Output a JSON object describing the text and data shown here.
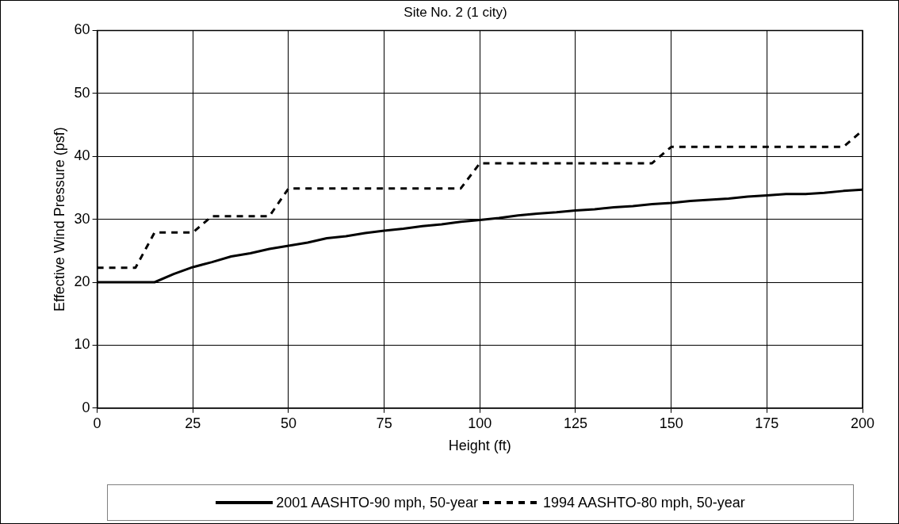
{
  "chart_data": {
    "type": "line",
    "title": "Site No. 2 (1 city)",
    "xlabel": "Height (ft)",
    "ylabel": "Effective Wind Pressure (psf)",
    "x": [
      0,
      5,
      10,
      15,
      20,
      25,
      30,
      35,
      40,
      45,
      50,
      55,
      60,
      65,
      70,
      75,
      80,
      85,
      90,
      95,
      100,
      105,
      110,
      115,
      120,
      125,
      130,
      135,
      140,
      145,
      150,
      155,
      160,
      165,
      170,
      175,
      180,
      185,
      190,
      195,
      200
    ],
    "series": [
      {
        "name": "2001 AASHTO-90 mph, 50-year",
        "color": "#000000",
        "line_style": "solid",
        "values": [
          20,
          20,
          20,
          20,
          21.3,
          22.4,
          23.2,
          24.1,
          24.6,
          25.3,
          25.8,
          26.3,
          27,
          27.3,
          27.8,
          28.2,
          28.5,
          28.9,
          29.2,
          29.6,
          29.9,
          30.2,
          30.6,
          30.9,
          31.1,
          31.4,
          31.6,
          31.9,
          32.1,
          32.4,
          32.6,
          32.9,
          33.1,
          33.3,
          33.6,
          33.8,
          34,
          34,
          34.2,
          34.5,
          34.7
        ]
      },
      {
        "name": "1994 AASHTO-80 mph, 50-year",
        "color": "#000000",
        "line_style": "dashed",
        "values": [
          22.3,
          22.3,
          22.3,
          27.9,
          27.9,
          27.9,
          30.5,
          30.5,
          30.5,
          30.5,
          34.9,
          34.9,
          34.9,
          34.9,
          34.9,
          34.9,
          34.9,
          34.9,
          34.9,
          34.9,
          38.9,
          38.9,
          38.9,
          38.9,
          38.9,
          38.9,
          38.9,
          38.9,
          38.9,
          38.9,
          41.5,
          41.5,
          41.5,
          41.5,
          41.5,
          41.5,
          41.5,
          41.5,
          41.5,
          41.5,
          44.1
        ]
      }
    ],
    "xlim": [
      0,
      200
    ],
    "xticks": [
      0,
      25,
      50,
      75,
      100,
      125,
      150,
      175,
      200
    ],
    "ylim": [
      0,
      60
    ],
    "yticks": [
      0,
      10,
      20,
      30,
      40,
      50,
      60
    ],
    "grid": true,
    "legend": "bottom",
    "marker": "none"
  }
}
